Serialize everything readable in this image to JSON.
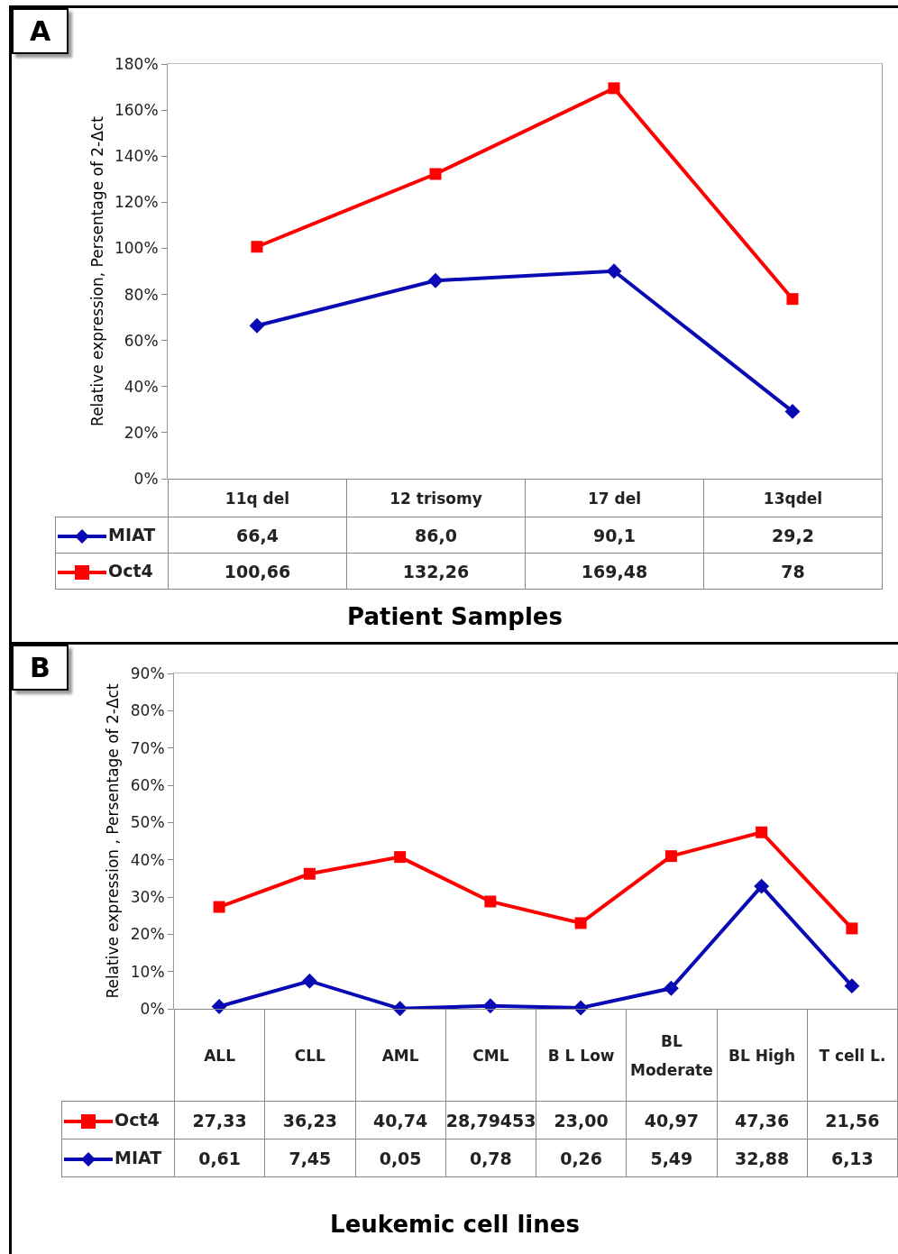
{
  "chart_data": [
    {
      "type": "line",
      "title": "A",
      "xlabel": "Patient Samples",
      "ylabel": "Relative expression, Persentage of 2-Δct",
      "categories": [
        "11q del",
        "12 trisomy",
        "17 del",
        "13qdel"
      ],
      "ylim": [
        0,
        180
      ],
      "yticks": [
        {
          "value": 0,
          "label": "0%"
        },
        {
          "value": 20,
          "label": "20%"
        },
        {
          "value": 40,
          "label": "40%"
        },
        {
          "value": 60,
          "label": "60%"
        },
        {
          "value": 80,
          "label": "80%"
        },
        {
          "value": 100,
          "label": "100%"
        },
        {
          "value": 120,
          "label": "120%"
        },
        {
          "value": 140,
          "label": "140%"
        },
        {
          "value": 160,
          "label": "160%"
        },
        {
          "value": 180,
          "label": "180%"
        }
      ],
      "legend": "bottom left",
      "series": [
        {
          "name": "MIAT",
          "color": "#0a0ab4",
          "marker": "diamond",
          "values": [
            66.4,
            86.0,
            90.1,
            29.2
          ],
          "value_labels": [
            "66,4",
            "86,0",
            "90,1",
            "29,2"
          ]
        },
        {
          "name": "Oct4",
          "color": "#ff0000",
          "marker": "square",
          "values": [
            100.66,
            132.26,
            169.48,
            78
          ],
          "value_labels": [
            "100,66",
            "132,26",
            "169,48",
            "78"
          ]
        }
      ]
    },
    {
      "type": "line",
      "title": "B",
      "xlabel": "Leukemic cell lines",
      "ylabel": "Relative expression , Persentage of 2-Δct",
      "categories": [
        "ALL",
        "CLL",
        "AML",
        "CML",
        "B L Low",
        "BL Moderate",
        "BL High",
        "T cell L."
      ],
      "ylim": [
        0,
        90
      ],
      "yticks": [
        {
          "value": 0,
          "label": "0%"
        },
        {
          "value": 10,
          "label": "10%"
        },
        {
          "value": 20,
          "label": "20%"
        },
        {
          "value": 30,
          "label": "30%"
        },
        {
          "value": 40,
          "label": "40%"
        },
        {
          "value": 50,
          "label": "50%"
        },
        {
          "value": 60,
          "label": "60%"
        },
        {
          "value": 70,
          "label": "70%"
        },
        {
          "value": 80,
          "label": "80%"
        },
        {
          "value": 90,
          "label": "90%"
        }
      ],
      "legend": "bottom left",
      "series": [
        {
          "name": "Oct4",
          "color": "#ff0000",
          "marker": "square",
          "values": [
            27.33,
            36.23,
            40.74,
            28.79453,
            23.0,
            40.97,
            47.36,
            21.56
          ],
          "value_labels": [
            "27,33",
            "36,23",
            "40,74",
            "28,79453",
            "23,00",
            "40,97",
            "47,36",
            "21,56"
          ]
        },
        {
          "name": "MIAT",
          "color": "#0a0ab4",
          "marker": "diamond",
          "values": [
            0.61,
            7.45,
            0.05,
            0.78,
            0.26,
            5.49,
            32.88,
            6.13
          ],
          "value_labels": [
            "0,61",
            "7,45",
            "0,05",
            "0,78",
            "0,26",
            "5,49",
            "32,88",
            "6,13"
          ]
        }
      ]
    }
  ]
}
